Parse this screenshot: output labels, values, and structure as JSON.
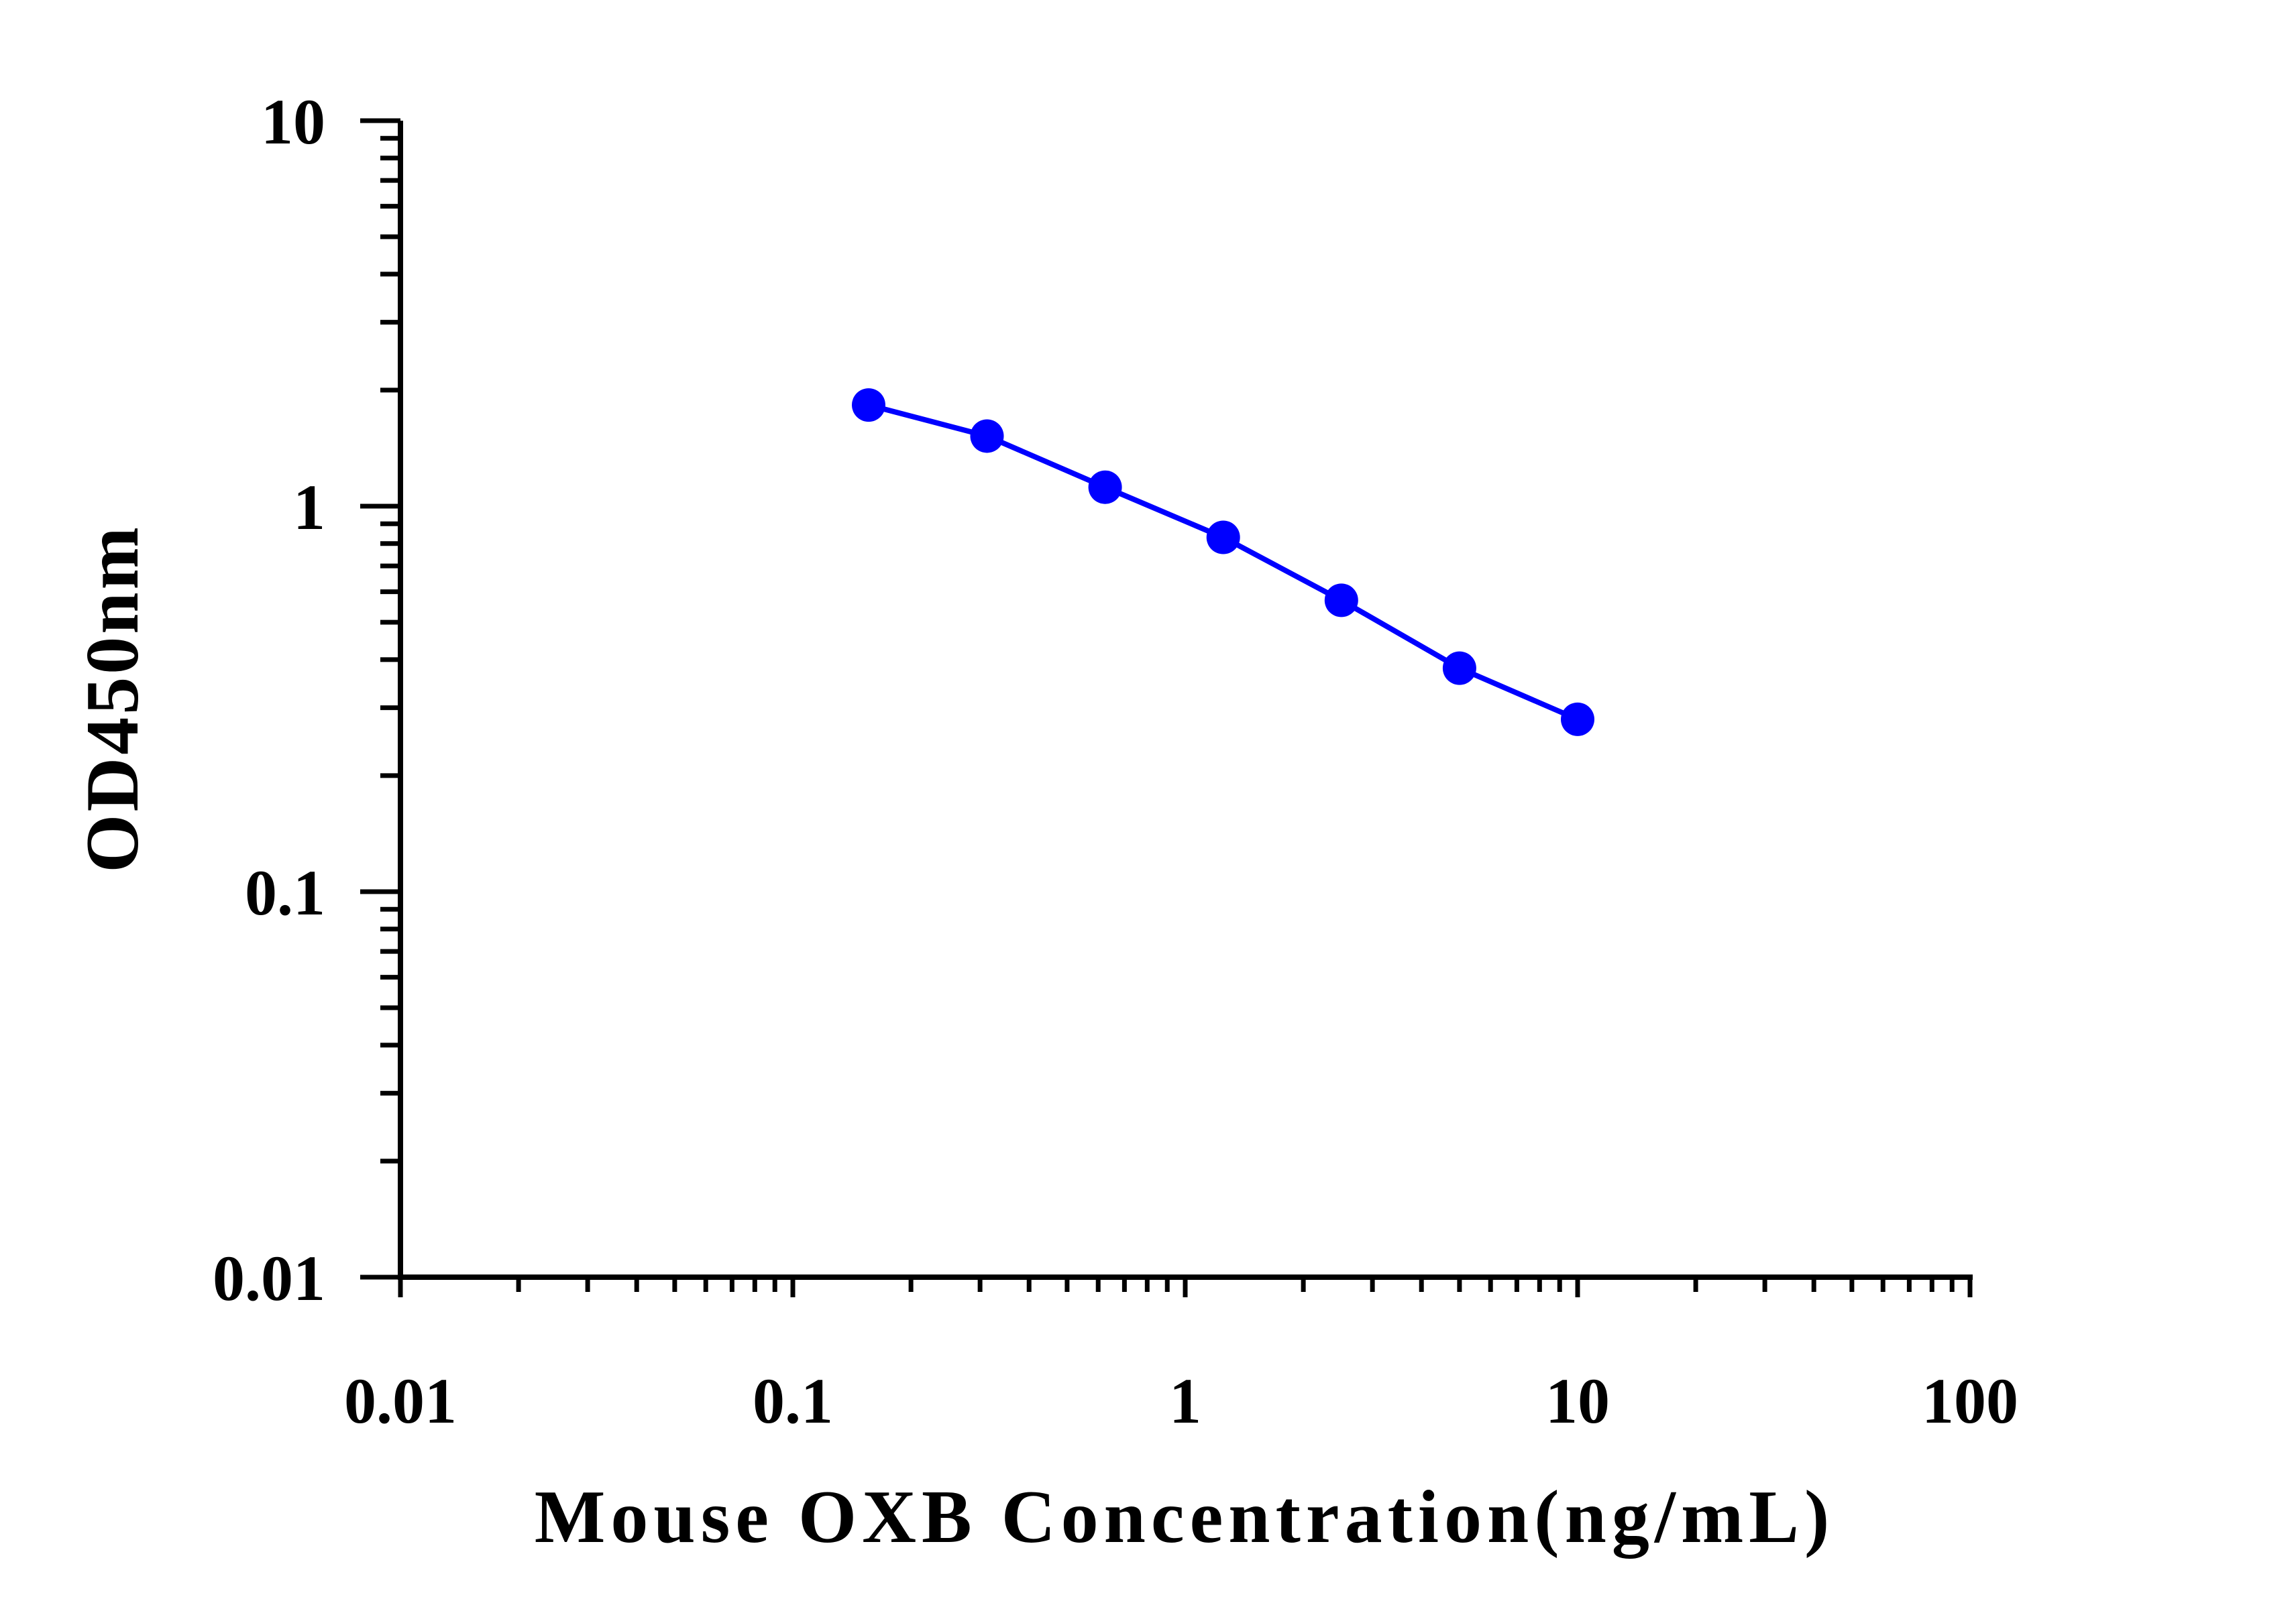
{
  "chart_data": {
    "type": "line",
    "xlabel": "Mouse OXB Concentration(ng/mL)",
    "ylabel": "OD450nm",
    "x_scale": "log",
    "y_scale": "log",
    "xlim": [
      0.01,
      100
    ],
    "ylim": [
      0.01,
      10
    ],
    "x_tick_labels": [
      "0.01",
      "0.1",
      "1",
      "10",
      "100"
    ],
    "y_tick_labels": [
      "0.01",
      "0.1",
      "1",
      "10"
    ],
    "grid": false,
    "legend": "none",
    "series": [
      {
        "color": "#0000ff",
        "marker": "circle",
        "points": [
          {
            "x": 0.156,
            "y": 1.83
          },
          {
            "x": 0.3125,
            "y": 1.52
          },
          {
            "x": 0.625,
            "y": 1.12
          },
          {
            "x": 1.25,
            "y": 0.83
          },
          {
            "x": 2.5,
            "y": 0.57
          },
          {
            "x": 5,
            "y": 0.38
          },
          {
            "x": 10,
            "y": 0.28
          }
        ]
      }
    ]
  }
}
